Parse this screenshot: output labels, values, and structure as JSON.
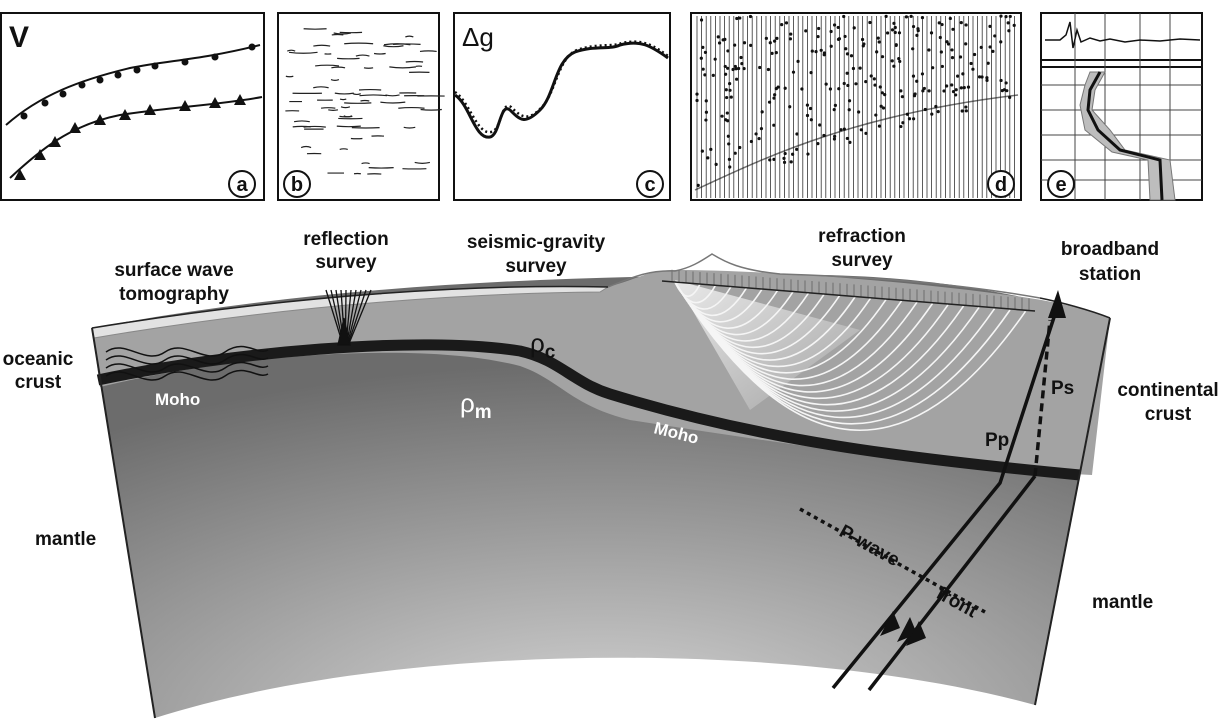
{
  "panels": {
    "a": {
      "letter": "a",
      "y_label": "V"
    },
    "b": {
      "letter": "b"
    },
    "c": {
      "letter": "c",
      "y_label": "Δg"
    },
    "d": {
      "letter": "d"
    },
    "e": {
      "letter": "e"
    }
  },
  "labels": {
    "surface_wave": [
      "surface wave",
      "tomography"
    ],
    "reflection": [
      "reflection",
      "survey"
    ],
    "seismic_gravity": [
      "seismic-gravity",
      "survey"
    ],
    "refraction": [
      "refraction",
      "survey"
    ],
    "broadband": [
      "broadband",
      "station"
    ],
    "oceanic_crust": [
      "oceanic",
      "crust"
    ],
    "continental_crust": [
      "continental",
      "crust"
    ],
    "mantle_left": "mantle",
    "mantle_right": "mantle",
    "moho_left": "Moho",
    "moho_right": "Moho",
    "rho_c": "ρ",
    "rho_c_sub": "c",
    "rho_m": "ρ",
    "rho_m_sub": "m",
    "pp": "Pp",
    "ps": "Ps",
    "p_wave": "P-wave",
    "front": "front"
  },
  "colors": {
    "mantle_light": "#d6d6d6",
    "mantle_dark": "#6e6e6e",
    "crust": "#a3a3a3",
    "moho": "#1a1a1a",
    "sediment": "#d9d9d9"
  }
}
